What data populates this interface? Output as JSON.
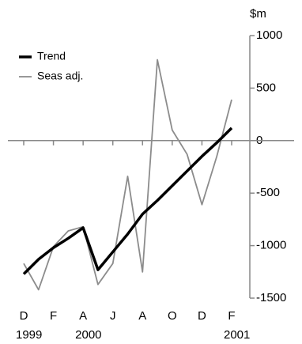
{
  "chart_data": {
    "type": "line",
    "y_unit": "$m",
    "categories": [
      "D",
      null,
      "F",
      null,
      "A",
      null,
      "J",
      null,
      "A",
      null,
      "O",
      null,
      "D",
      null,
      "F"
    ],
    "year_labels": [
      "1999",
      "2000",
      "2001"
    ],
    "series": [
      {
        "name": "Trend",
        "color": "#000000",
        "values": [
          -1270,
          -1130,
          -1020,
          -930,
          -830,
          -1230,
          -1060,
          -890,
          -700,
          -570,
          -430,
          -290,
          -150,
          -20,
          120
        ]
      },
      {
        "name": "Seas adj.",
        "color": "#8c8c8c",
        "values": [
          -1170,
          -1420,
          -1010,
          -860,
          -820,
          -1370,
          -1170,
          -340,
          -1250,
          770,
          100,
          -130,
          -610,
          -150,
          390
        ]
      }
    ],
    "ylim": [
      -1500,
      1000
    ],
    "yticks": [
      -1500,
      -1000,
      -500,
      0,
      500,
      1000
    ],
    "legend": "top-left"
  }
}
